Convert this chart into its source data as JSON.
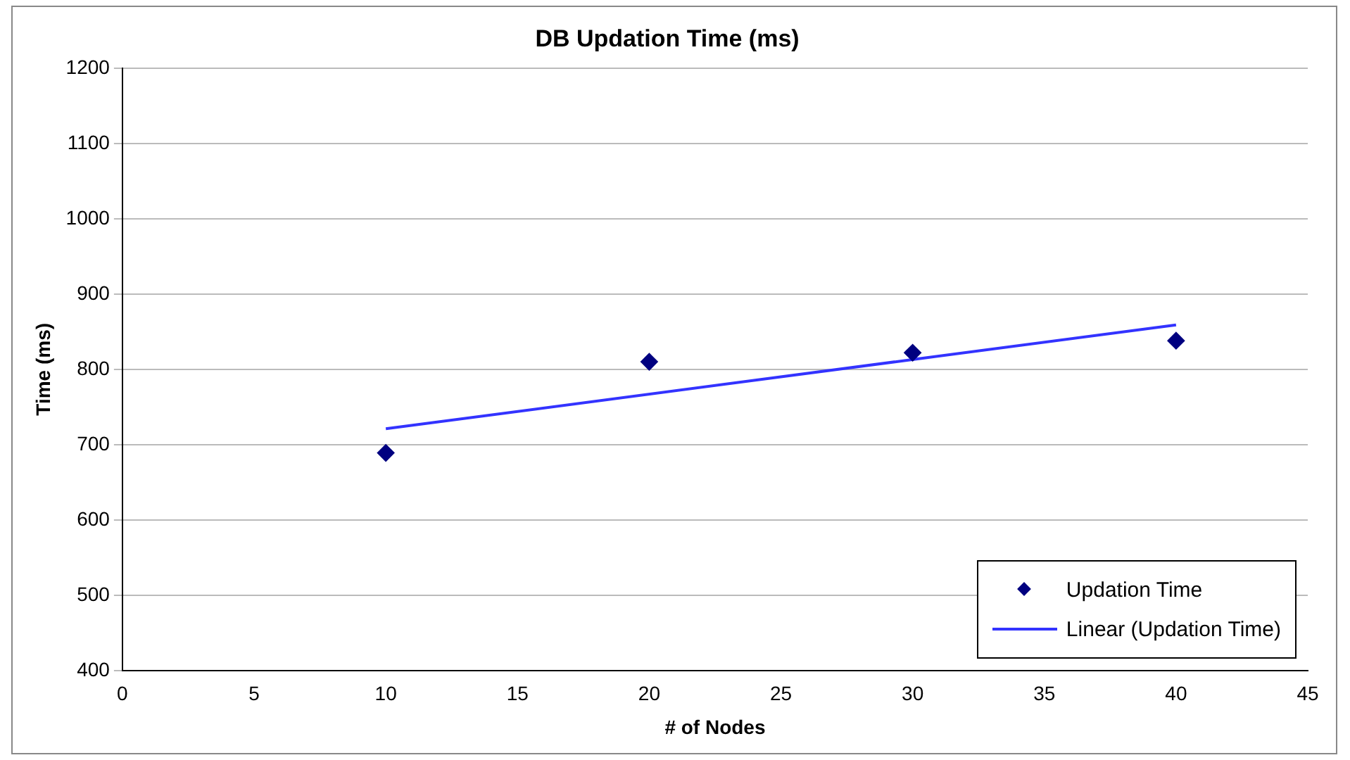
{
  "chart_data": {
    "type": "scatter",
    "title": "DB Updation Time (ms)",
    "xlabel": "# of Nodes",
    "ylabel": "Time (ms)",
    "xlim": [
      0,
      45
    ],
    "xticks": [
      0,
      5,
      10,
      15,
      20,
      25,
      30,
      35,
      40,
      45
    ],
    "ylim": [
      400,
      1200
    ],
    "yticks": [
      400,
      500,
      600,
      700,
      800,
      900,
      1000,
      1100,
      1200
    ],
    "grid": "y",
    "legend": "bottom right",
    "marker": "diamond",
    "series": [
      {
        "name": "Updation Time",
        "color": "#000080",
        "x": [
          10,
          20,
          30,
          40
        ],
        "values": [
          689,
          810,
          822,
          838
        ]
      },
      {
        "name": "Linear (Updation Time)",
        "type": "line",
        "marker": "none",
        "color": "#3333ff",
        "x": [
          10,
          40
        ],
        "values": [
          721,
          859
        ]
      }
    ]
  }
}
